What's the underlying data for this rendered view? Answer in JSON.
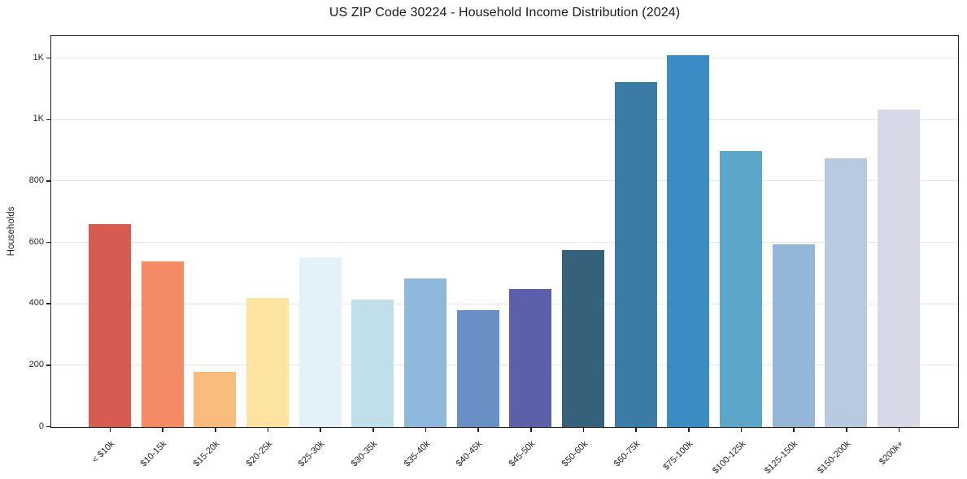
{
  "title": "US ZIP Code 30224 - Household Income Distribution (2024)",
  "chart_data": {
    "type": "bar",
    "title": "US ZIP Code 30224 - Household Income Distribution (2024)",
    "xlabel": "",
    "ylabel": "Households",
    "categories": [
      "< $10k",
      "$10-15k",
      "$15-20k",
      "$20-25k",
      "$25-30k",
      "$30-35k",
      "$35-40k",
      "$40-45k",
      "$45-50k",
      "$50-60k",
      "$60-75k",
      "$75-100k",
      "$100-125k",
      "$125-150k",
      "$150-200k",
      "$200k+"
    ],
    "values": [
      660,
      540,
      180,
      420,
      552,
      415,
      485,
      380,
      450,
      577,
      1125,
      1210,
      900,
      595,
      875,
      1035
    ],
    "bar_colors": [
      "#d65c52",
      "#f48a66",
      "#fabc7d",
      "#fce3a0",
      "#e3f1f8",
      "#c0dfe9",
      "#8eb9dc",
      "#6890c4",
      "#5c5fa9",
      "#35617a",
      "#3b7ba6",
      "#3a8cc2",
      "#5ca6c9",
      "#92b7d9",
      "#b9c9e0",
      "#d8d9e7"
    ],
    "yticks": [
      {
        "value": 0,
        "label": "0"
      },
      {
        "value": 200,
        "label": "200"
      },
      {
        "value": 400,
        "label": "400"
      },
      {
        "value": 600,
        "label": "600"
      },
      {
        "value": 800,
        "label": "800"
      },
      {
        "value": 1000,
        "label": "1K"
      },
      {
        "value": 1200,
        "label": "1K"
      }
    ],
    "ylim": [
      0,
      1272
    ],
    "grid": "horizontal",
    "x_tick_rotation": 45,
    "legend": "none",
    "colors": {
      "background": "#ffffff",
      "gridline": "#e6e6e6",
      "axis": "#1f1f1f",
      "text": "#262626"
    }
  }
}
